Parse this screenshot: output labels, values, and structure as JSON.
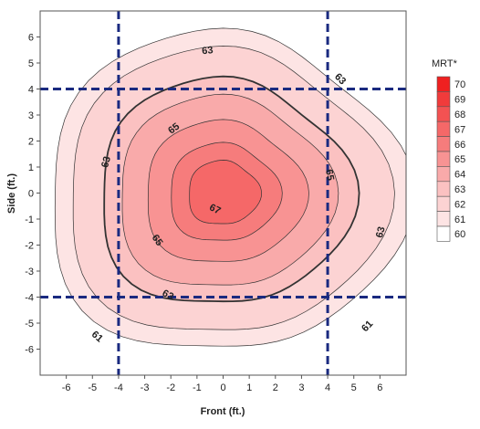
{
  "chart_data": {
    "type": "contour",
    "xlabel": "Front (ft.)",
    "ylabel": "Side (ft.)",
    "xlim": [
      -7,
      7
    ],
    "ylim": [
      -7,
      7
    ],
    "x_ticks": [
      "-6",
      "-5",
      "-4",
      "-3",
      "-2",
      "-1",
      "0",
      "1",
      "2",
      "3",
      "4",
      "5",
      "6"
    ],
    "y_ticks": [
      "6",
      "5",
      "4",
      "3",
      "2",
      "1",
      "0",
      "-1",
      "-2",
      "-3",
      "-4",
      "-5",
      "-6"
    ],
    "peak": {
      "x": 0,
      "y": 0,
      "value": 67.8
    },
    "contour_levels": [
      61,
      62,
      63,
      64,
      65,
      66,
      67
    ],
    "contour_radii_ft": {
      "61": 6.5,
      "62": 5.8,
      "63": 4.6,
      "64": 3.9,
      "65": 2.9,
      "66": 2.0,
      "67": 1.3
    },
    "contour_labels": [
      {
        "text": "63",
        "x": -0.6,
        "y": 5.5
      },
      {
        "text": "63",
        "x": 4.5,
        "y": 4.4
      },
      {
        "text": "63",
        "x": -4.5,
        "y": 1.2
      },
      {
        "text": "63",
        "x": 6.0,
        "y": -1.5
      },
      {
        "text": "63",
        "x": -2.1,
        "y": -3.9
      },
      {
        "text": "65",
        "x": -1.9,
        "y": 2.5
      },
      {
        "text": "65",
        "x": 4.1,
        "y": 0.7
      },
      {
        "text": "65",
        "x": -2.5,
        "y": -1.8
      },
      {
        "text": "67",
        "x": -0.3,
        "y": -0.6
      },
      {
        "text": "61",
        "x": -4.8,
        "y": -5.5
      },
      {
        "text": "61",
        "x": 5.5,
        "y": -5.1
      }
    ],
    "dashed_lines": {
      "x": [
        -4,
        4
      ],
      "y": [
        4,
        -4
      ]
    },
    "legend": {
      "title": "MRT*",
      "placement": "right",
      "levels": [
        "70",
        "69",
        "68",
        "67",
        "66",
        "65",
        "64",
        "63",
        "62",
        "61",
        "60"
      ]
    },
    "colors": {
      "ramp": [
        "#ffffff",
        "#fde4e4",
        "#fcd3d3",
        "#fbc1c1",
        "#f9aaaa",
        "#f89393",
        "#f67c7c",
        "#f56868",
        "#f35252",
        "#f13b3b",
        "#ef2020"
      ],
      "contour_line": "#333333",
      "dashed_line": "#1a2a80"
    }
  }
}
